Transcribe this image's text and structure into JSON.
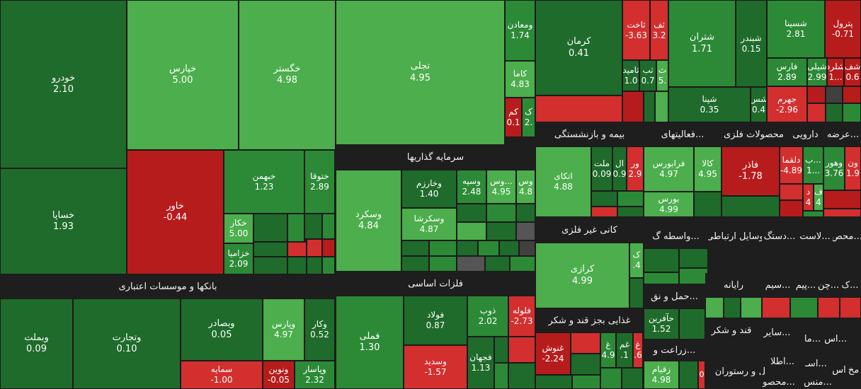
{
  "chart_data": {
    "type": "treemap",
    "value_unit": "percent change",
    "palette": {
      "strong_green": "#1f6b2b",
      "mid_green": "#2c8a37",
      "light_green": "#4cae4c",
      "dark_red": "#b71c1c",
      "red": "#d32f2f",
      "gray": "#555555",
      "dark_gray": "#404040",
      "header_bg": "#1e1e1e"
    },
    "sectors": [
      {
        "name": "بانکها و موسسات اعتباری"
      },
      {
        "name": "سرمایه گذاریها"
      },
      {
        "name": "فلزات اساسی"
      },
      {
        "name": "بیمه و بازنشستگی"
      },
      {
        "name": "فعالیتهای..."
      },
      {
        "name": "محصولات فلزی"
      },
      {
        "name": "دارویی"
      },
      {
        "name": "عرضه..."
      },
      {
        "name": "کانی غیر فلزی"
      },
      {
        "name": "غذایی بجز قند و شکر"
      },
      {
        "name": "واسطه گ..."
      },
      {
        "name": "وسایل ارتباطی"
      },
      {
        "name": "دستگ..."
      },
      {
        "name": "لاست..."
      },
      {
        "name": "محص..."
      },
      {
        "name": "حمل و نق..."
      },
      {
        "name": "رایانه"
      },
      {
        "name": "سیم..."
      },
      {
        "name": "پیم..."
      },
      {
        "name": "چن..."
      },
      {
        "name": "ک..."
      },
      {
        "name": "زراعت و..."
      },
      {
        "name": "قند و شکر"
      },
      {
        "name": "سایر..."
      },
      {
        "name": "اس..."
      },
      {
        "name": "ما..."
      },
      {
        "name": "هتل و رستوران"
      },
      {
        "name": "اطلا..."
      },
      {
        "name": "اسـ..."
      },
      {
        "name": "اس"
      },
      {
        "name": "مخ"
      },
      {
        "name": "محصو..."
      },
      {
        "name": "منس..."
      }
    ],
    "symbols": [
      {
        "name": "خودرو",
        "value": "2.10",
        "color": "strong_green"
      },
      {
        "name": "خساپا",
        "value": "1.93",
        "color": "strong_green"
      },
      {
        "name": "خپارس",
        "value": "5.00",
        "color": "light_green"
      },
      {
        "name": "خگستر",
        "value": "4.98",
        "color": "light_green"
      },
      {
        "name": "خاور",
        "value": "-0.44",
        "color": "dark_red"
      },
      {
        "name": "خبهمن",
        "value": "1.23",
        "color": "mid_green"
      },
      {
        "name": "ختوقا",
        "value": "2.89",
        "color": "mid_green"
      },
      {
        "name": "خکار",
        "value": "5.00",
        "color": "light_green"
      },
      {
        "name": "خزامیا",
        "value": "2.09",
        "color": "mid_green"
      },
      {
        "name": "تجلی",
        "value": "4.95",
        "color": "light_green"
      },
      {
        "name": "ومعادن",
        "value": "1.74",
        "color": "mid_green"
      },
      {
        "name": "کاما",
        "value": "4.83",
        "color": "light_green"
      },
      {
        "name": "کم",
        "value": "0.1",
        "color": "dark_red"
      },
      {
        "name": "ک",
        "value": "2.",
        "color": "mid_green"
      },
      {
        "name": "کرمان",
        "value": "0.41",
        "color": "strong_green"
      },
      {
        "name": "ثاخت",
        "value": "-3.63",
        "color": "red"
      },
      {
        "name": "ثف",
        "value": "3.2",
        "color": "red"
      },
      {
        "name": "ثامید",
        "value": "1.0",
        "color": "strong_green"
      },
      {
        "name": "ثب",
        "value": "0.7",
        "color": "strong_green"
      },
      {
        "name": "ث",
        "value": "5.",
        "color": "light_green"
      },
      {
        "name": "شتران",
        "value": "1.71",
        "color": "mid_green"
      },
      {
        "name": "شبندر",
        "value": "0.15",
        "color": "strong_green"
      },
      {
        "name": "شپنا",
        "value": "0.35",
        "color": "strong_green"
      },
      {
        "name": "شس",
        "value": "0.4",
        "color": "strong_green"
      },
      {
        "name": "شسینا",
        "value": "2.81",
        "color": "mid_green"
      },
      {
        "name": "پترول",
        "value": "-0.71",
        "color": "dark_red"
      },
      {
        "name": "فارس",
        "value": "2.89",
        "color": "mid_green"
      },
      {
        "name": "شیلی",
        "value": "2.99",
        "color": "mid_green"
      },
      {
        "name": "شلرد",
        "value": "1...",
        "color": "dark_red"
      },
      {
        "name": "شف",
        "value": "0.6",
        "color": "dark_red"
      },
      {
        "name": "جهرم",
        "value": "-2.96",
        "color": "red"
      },
      {
        "name": "وسکرد",
        "value": "4.84",
        "color": "light_green"
      },
      {
        "name": "وخارزم",
        "value": "1.40",
        "color": "strong_green"
      },
      {
        "name": "وسکرشا",
        "value": "4.87",
        "color": "light_green"
      },
      {
        "name": "وسپه",
        "value": "2.48",
        "color": "mid_green"
      },
      {
        "name": "وس...",
        "value": "4.95",
        "color": "light_green"
      },
      {
        "name": "وس",
        "value": "4.8",
        "color": "light_green"
      },
      {
        "name": "ملت",
        "value": "0.09",
        "color": "strong_green"
      },
      {
        "name": "ال",
        "value": "0.9",
        "color": "strong_green"
      },
      {
        "name": "ور",
        "value": "2.9",
        "color": "red"
      },
      {
        "name": "اتکای",
        "value": "4.88",
        "color": "light_green"
      },
      {
        "name": "فرابورس",
        "value": "4.97",
        "color": "light_green"
      },
      {
        "name": "کالا",
        "value": "4.95",
        "color": "light_green"
      },
      {
        "name": "بورس",
        "value": "4.99",
        "color": "light_green"
      },
      {
        "name": "فاذر",
        "value": "-1.78",
        "color": "dark_red"
      },
      {
        "name": "دلقما",
        "value": "-4.89",
        "color": "red"
      },
      {
        "name": "ب...",
        "value": "1...",
        "color": "mid_green"
      },
      {
        "name": "د",
        "value": "4",
        "color": "red"
      },
      {
        "name": "ف",
        "value": "4",
        "color": "light_green"
      },
      {
        "name": "وهور",
        "value": "3.76",
        "color": "mid_green"
      },
      {
        "name": "ون",
        "value": "1.9",
        "color": "red"
      },
      {
        "name": "کرازی",
        "value": "4.99",
        "color": "light_green"
      },
      {
        "name": "ک",
        "value": ".4",
        "color": "light_green"
      },
      {
        "name": "وبملت",
        "value": "0.09",
        "color": "strong_green"
      },
      {
        "name": "وتجارت",
        "value": "0.10",
        "color": "strong_green"
      },
      {
        "name": "وبصادر",
        "value": "0.05",
        "color": "strong_green"
      },
      {
        "name": "وپارس",
        "value": "4.97",
        "color": "light_green"
      },
      {
        "name": "وکار",
        "value": "0.52",
        "color": "strong_green"
      },
      {
        "name": "سمایه",
        "value": "-1.00",
        "color": "red"
      },
      {
        "name": "ونوین",
        "value": "-0.05",
        "color": "dark_red"
      },
      {
        "name": "وپاسار",
        "value": "2.32",
        "color": "mid_green"
      },
      {
        "name": "فملی",
        "value": "1.30",
        "color": "mid_green"
      },
      {
        "name": "فولاد",
        "value": "0.87",
        "color": "strong_green"
      },
      {
        "name": "ذوب",
        "value": "2.02",
        "color": "mid_green"
      },
      {
        "name": "فلوله",
        "value": "-2.73",
        "color": "red"
      },
      {
        "name": "فجهان",
        "value": "1.13",
        "color": "strong_green"
      },
      {
        "name": "وسدید",
        "value": "-1.57",
        "color": "red"
      },
      {
        "name": "غنوش",
        "value": "-2.24",
        "color": "dark_red"
      },
      {
        "name": "غ",
        "value": "4.9",
        "color": "mid_green"
      },
      {
        "name": "غم",
        "value": ".1",
        "color": "strong_green"
      },
      {
        "name": "غ",
        "value": ".6",
        "color": "red"
      },
      {
        "name": "حآفرین",
        "value": "1.52",
        "color": "strong_green"
      },
      {
        "name": "زقیام",
        "value": "4.98",
        "color": "light_green"
      },
      {
        "name": "",
        "value": "0",
        "color": "red"
      }
    ]
  }
}
